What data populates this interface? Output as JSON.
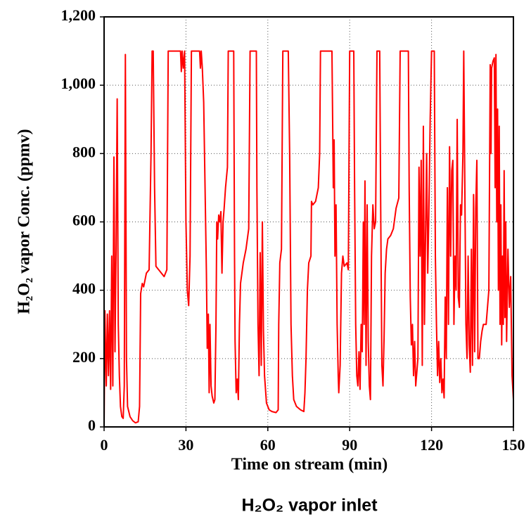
{
  "chart_data": {
    "type": "line",
    "xlabel": "Time on stream (min)",
    "ylabel": "H₂O₂ vapor Conc. (ppmv)",
    "caption": "H₂O₂ vapor inlet",
    "color": "#ff0000",
    "grid": true,
    "xlim": [
      0,
      150
    ],
    "xticks": [
      0,
      30,
      60,
      90,
      120,
      150
    ],
    "ylim": [
      0,
      1200
    ],
    "yticks": [
      0,
      200,
      400,
      600,
      800,
      {
        "value": 1000,
        "label": "1,000"
      },
      {
        "value": 1200,
        "label": "1,200"
      }
    ],
    "x": [
      0,
      0.3,
      0.8,
      1.2,
      1.6,
      2,
      2.4,
      2.8,
      3.2,
      3.6,
      4,
      4.4,
      4.8,
      5.2,
      5.6,
      6,
      6.5,
      7,
      7.4,
      7.8,
      8.2,
      8.6,
      9.5,
      10.5,
      11.5,
      12.5,
      13,
      13.4,
      14,
      14.5,
      15,
      15.5,
      16.5,
      17.2,
      17.6,
      18,
      18.5,
      19,
      20,
      21,
      22,
      23,
      23.5,
      28,
      28.3,
      28.6,
      29,
      29.5,
      30,
      30.5,
      31,
      31.5,
      32,
      35,
      35.3,
      35.6,
      36,
      36.5,
      37,
      37.5,
      37.8,
      38.2,
      38.5,
      38.8,
      39.2,
      39.6,
      40.2,
      40.6,
      41,
      41.3,
      41.6,
      42,
      42.4,
      42.8,
      43.2,
      43.6,
      44,
      44.5,
      45.2,
      45.5,
      47.5,
      47.8,
      48,
      48.4,
      48.8,
      49.2,
      49.6,
      50,
      51,
      52,
      53,
      53.5,
      55.8,
      56,
      56.4,
      56.8,
      57.2,
      57.6,
      58,
      58.4,
      58.8,
      59.5,
      60.5,
      61.5,
      63,
      63.8,
      64,
      64.4,
      65,
      65.5,
      67.5,
      68,
      68.5,
      69,
      69.5,
      70.5,
      72,
      73.2,
      73.6,
      74,
      74.5,
      75,
      75.8,
      76,
      76.5,
      77.5,
      78.5,
      79,
      79.3,
      83.5,
      84,
      84.3,
      84.6,
      85,
      85.4,
      85.8,
      86,
      86.5,
      87,
      87.5,
      88,
      89,
      89.5,
      90,
      91.5,
      91.8,
      92.2,
      92.6,
      93,
      93.4,
      93.8,
      94.2,
      94.6,
      95,
      95.3,
      95.6,
      96,
      96.4,
      96.8,
      97.2,
      97.6,
      98,
      98.5,
      99,
      99.5,
      100,
      101,
      101.4,
      101.8,
      102.2,
      102.6,
      103,
      103.5,
      104,
      105,
      106,
      107,
      108,
      108.5,
      111.5,
      111.8,
      112.2,
      112.6,
      113,
      113.4,
      113.8,
      114.2,
      114.6,
      115,
      115.4,
      115.8,
      116.2,
      116.6,
      117,
      117.4,
      117.8,
      118.2,
      118.6,
      119,
      119.5,
      120,
      121,
      121.4,
      121.8,
      122.2,
      122.6,
      123,
      123.4,
      123.8,
      124.2,
      124.6,
      125,
      125.4,
      125.8,
      126.2,
      126.6,
      127,
      127.4,
      127.8,
      128.2,
      128.6,
      129,
      129.4,
      129.8,
      130.2,
      130.6,
      131,
      131.5,
      131.8,
      132.2,
      132.6,
      133,
      133.4,
      133.8,
      134.2,
      134.6,
      135,
      135.4,
      135.8,
      136.2,
      136.6,
      137,
      137.5,
      138,
      138.5,
      139,
      140,
      141,
      141.5,
      141.8,
      142,
      142.5,
      143,
      143.3,
      143.6,
      143.9,
      144.2,
      144.5,
      144.8,
      145.1,
      145.4,
      145.7,
      146,
      146.3,
      146.6,
      146.9,
      147.2,
      147.5,
      148,
      148.5,
      149,
      149.5,
      150
    ],
    "values": [
      0,
      340,
      120,
      330,
      150,
      340,
      110,
      500,
      120,
      790,
      220,
      520,
      960,
      300,
      150,
      60,
      30,
      25,
      120,
      1090,
      200,
      60,
      30,
      18,
      12,
      15,
      60,
      390,
      420,
      410,
      430,
      450,
      460,
      800,
      1100,
      1100,
      700,
      470,
      460,
      450,
      440,
      460,
      1100,
      1100,
      1040,
      1100,
      1050,
      1100,
      600,
      400,
      355,
      500,
      1100,
      1100,
      1050,
      1100,
      1050,
      950,
      700,
      450,
      230,
      330,
      100,
      300,
      120,
      90,
      70,
      80,
      300,
      600,
      550,
      620,
      600,
      630,
      450,
      600,
      640,
      700,
      760,
      1100,
      1100,
      500,
      250,
      100,
      140,
      80,
      300,
      420,
      480,
      520,
      580,
      1100,
      1100,
      700,
      300,
      150,
      510,
      180,
      600,
      280,
      150,
      70,
      50,
      45,
      42,
      50,
      300,
      480,
      520,
      1100,
      1100,
      800,
      300,
      150,
      80,
      60,
      50,
      45,
      100,
      200,
      400,
      480,
      500,
      660,
      650,
      660,
      700,
      800,
      1100,
      1100,
      700,
      840,
      500,
      650,
      300,
      150,
      100,
      180,
      450,
      500,
      470,
      480,
      460,
      1100,
      1100,
      700,
      300,
      150,
      120,
      220,
      110,
      300,
      220,
      600,
      300,
      720,
      180,
      650,
      250,
      120,
      80,
      500,
      650,
      580,
      600,
      1100,
      1100,
      600,
      180,
      120,
      260,
      450,
      520,
      550,
      560,
      580,
      640,
      670,
      1100,
      1100,
      700,
      380,
      240,
      300,
      150,
      250,
      120,
      160,
      200,
      760,
      500,
      780,
      180,
      880,
      300,
      560,
      800,
      450,
      620,
      900,
      1100,
      1100,
      500,
      300,
      150,
      250,
      130,
      200,
      100,
      140,
      85,
      380,
      200,
      700,
      300,
      820,
      500,
      750,
      780,
      300,
      500,
      400,
      900,
      380,
      350,
      650,
      620,
      800,
      1100,
      700,
      300,
      200,
      500,
      240,
      160,
      520,
      180,
      680,
      220,
      640,
      780,
      200,
      200,
      250,
      280,
      300,
      300,
      400,
      1060,
      800,
      1050,
      1070,
      1080,
      700,
      1090,
      600,
      930,
      400,
      880,
      300,
      650,
      240,
      500,
      300,
      750,
      320,
      600,
      250,
      520,
      350,
      440,
      150,
      80
    ]
  }
}
